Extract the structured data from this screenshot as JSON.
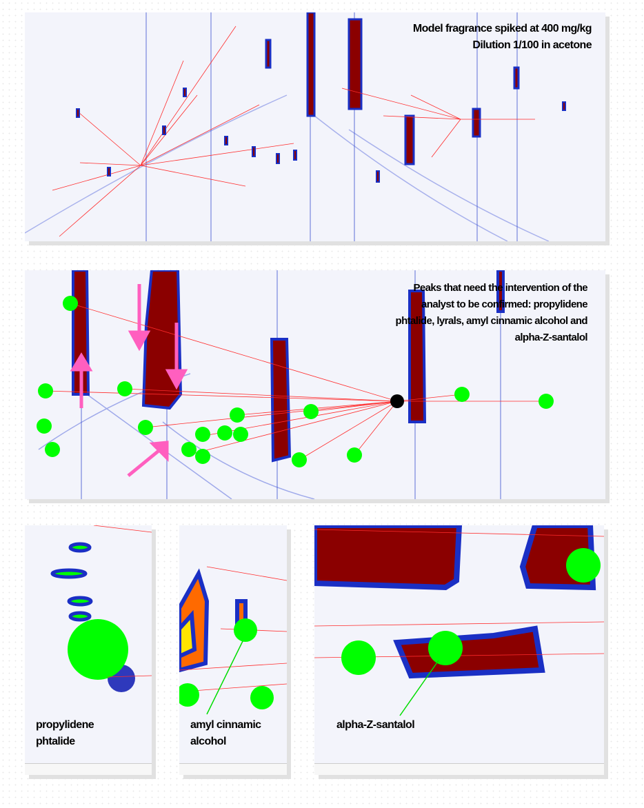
{
  "chart_data": [
    {
      "type": "heatmap",
      "title": "",
      "annotations": [
        "Model fragrance spiked at 400 mg/kg",
        "Dilution 1/100 in acetone"
      ]
    },
    {
      "type": "heatmap",
      "title": "",
      "annotations": [
        "Peaks that need the intervention of the",
        "analyst to be confirmed:  propylidene",
        "phtalide, lyrals, amyl cinnamic alcohol and",
        "alpha-Z-santalol"
      ]
    },
    {
      "type": "heatmap",
      "title": "",
      "annotations": [
        "propylidene",
        "phtalide"
      ]
    },
    {
      "type": "heatmap",
      "title": "",
      "annotations": [
        "amyl cinnamic",
        "alcohol"
      ]
    },
    {
      "type": "heatmap",
      "title": "",
      "annotations": [
        "alpha-Z-santalol"
      ]
    }
  ],
  "colors": {
    "background": "#f3f4fb",
    "blue": "#1a2fc4",
    "red": "#8b0000",
    "orange": "#ff6a00",
    "yellow": "#ffe400",
    "green_marker": "#00ff00",
    "link_line": "#ff2b2b",
    "arrow": "#ff5fbf"
  }
}
